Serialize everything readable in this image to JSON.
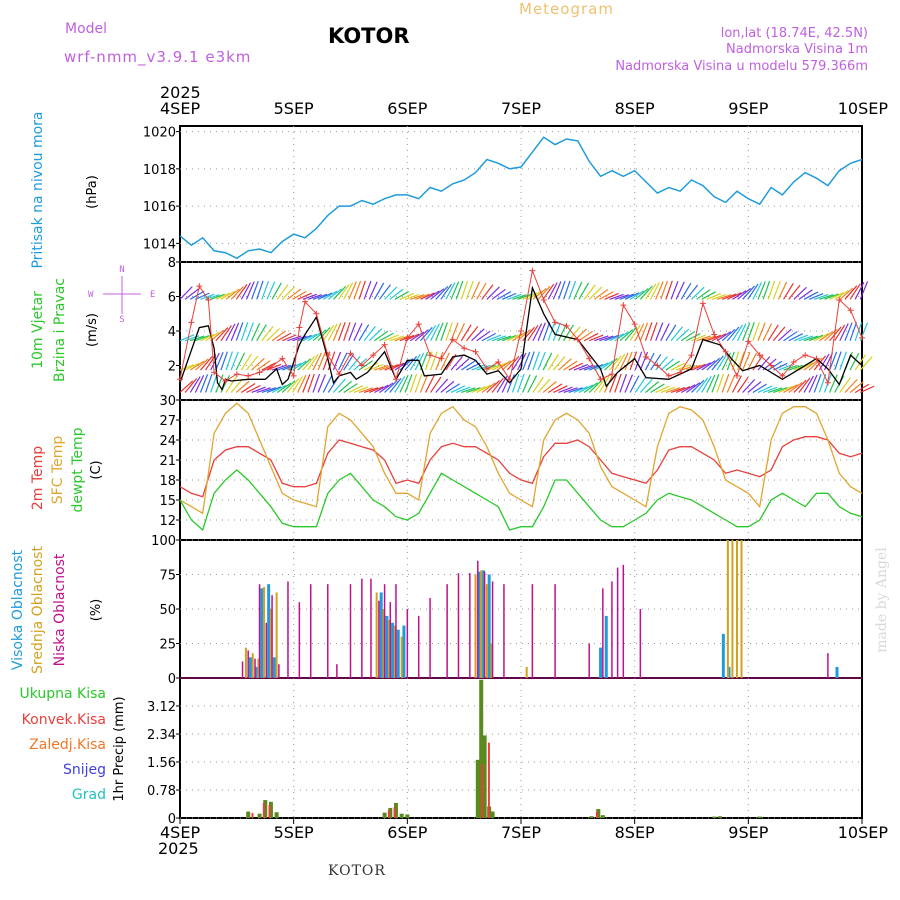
{
  "header": {
    "model_label": "Model",
    "model_name": "wrf-nmm_v3.9.1 e3km",
    "station": "KOTOR",
    "chart_kind": "Meteogram",
    "lonlat": "lon,lat (18.74E, 42.5N)",
    "elevation": "Nadmorska Visina 1m",
    "model_elevation": "Nadmorska Visina u modelu 579.366m",
    "watermark": "made by Angel",
    "footer_station": "KOTOR"
  },
  "colors": {
    "pressure": "#1e9bdc",
    "wind_speed": "#000000",
    "wind_gust": "#e8403c",
    "t2m": "#e8403c",
    "sfc": "#e0a530",
    "dewpt": "#2ac82a",
    "high_cloud": "#1e9bdc",
    "mid_cloud": "#d4a020",
    "low_cloud": "#c0108c",
    "total_precip": "#5a8a1e",
    "conv_precip": "#e8403c",
    "ls_precip": "#f07828",
    "snow": "#4040e0",
    "hail": "#20c0c0",
    "model_label": "#c060e0",
    "meteogram": "#f0c070"
  },
  "time_axis": {
    "year": "2025",
    "ticks": [
      "4SEP",
      "5SEP",
      "6SEP",
      "7SEP",
      "8SEP",
      "9SEP",
      "10SEP"
    ]
  },
  "panel_labels": {
    "pressure": {
      "name": "Pritisak na nivou mora",
      "unit": "(hPa)"
    },
    "wind": {
      "name1": "10m Vjetar",
      "name2": "Brzina i Pravac",
      "unit": "(m/s)",
      "compass_n": "N",
      "compass_w": "W",
      "compass_e": "E",
      "compass_s": "S"
    },
    "temp": {
      "name1": "2m Temp",
      "name2": "SFC Temp",
      "name3": "dewpt Temp",
      "unit": "(C)"
    },
    "cloud": {
      "name1": "Visoka Oblacnost",
      "name2": "Srednja Oblacnost",
      "name3": "Niska Oblacnost",
      "unit": "(%)"
    },
    "precip": {
      "l1": "Ukupna Kisa",
      "l2": "Konvek.Kisa",
      "l3": "Zaledj.Kisa",
      "l4": "Snijeg",
      "l5": "Grad",
      "unit": "1hr Precip (mm)"
    }
  },
  "chart_data": [
    {
      "type": "line",
      "title": "Pritisak na nivou mora",
      "ylabel": "(hPa)",
      "ylim": [
        1013,
        1020.3
      ],
      "yticks": [
        "1014",
        "1016",
        "1018",
        "1020"
      ],
      "x_days": [
        0,
        0.1,
        0.2,
        0.3,
        0.4,
        0.5,
        0.6,
        0.7,
        0.8,
        0.9,
        1.0,
        1.1,
        1.2,
        1.3,
        1.4,
        1.5,
        1.6,
        1.7,
        1.8,
        1.9,
        2.0,
        2.1,
        2.2,
        2.3,
        2.4,
        2.5,
        2.6,
        2.7,
        2.8,
        2.9,
        3.0,
        3.1,
        3.2,
        3.3,
        3.4,
        3.5,
        3.6,
        3.7,
        3.8,
        3.9,
        4.0,
        4.1,
        4.2,
        4.3,
        4.4,
        4.5,
        4.6,
        4.7,
        4.8,
        4.9,
        5.0,
        5.1,
        5.2,
        5.3,
        5.4,
        5.5,
        5.6,
        5.7,
        5.8,
        5.9,
        6.0
      ],
      "values": [
        1014.4,
        1013.9,
        1014.3,
        1013.6,
        1013.5,
        1013.2,
        1013.6,
        1013.7,
        1013.5,
        1014.1,
        1014.5,
        1014.3,
        1014.8,
        1015.5,
        1016.0,
        1016.0,
        1016.3,
        1016.1,
        1016.4,
        1016.6,
        1016.6,
        1016.4,
        1017.0,
        1016.8,
        1017.2,
        1017.4,
        1017.8,
        1018.5,
        1018.3,
        1018.0,
        1018.1,
        1018.9,
        1019.7,
        1019.3,
        1019.6,
        1019.5,
        1018.4,
        1017.6,
        1017.9,
        1017.6,
        1017.9,
        1017.3,
        1016.7,
        1017.0,
        1016.8,
        1017.4,
        1017.1,
        1016.5,
        1016.2,
        1016.8,
        1016.4,
        1016.1,
        1017.0,
        1016.6,
        1017.3,
        1017.8,
        1017.5,
        1017.1,
        1017.9,
        1018.3,
        1018.5
      ]
    },
    {
      "type": "line",
      "title": "10m Vjetar Brzina i Pravac",
      "ylabel": "(m/s)",
      "ylim": [
        0,
        8
      ],
      "yticks": [
        "2",
        "4",
        "6",
        "8"
      ],
      "series": [
        {
          "name": "wind speed",
          "x_days": [
            0,
            0.17,
            0.25,
            0.3,
            0.33,
            0.37,
            0.4,
            0.45,
            0.6,
            0.75,
            0.85,
            0.9,
            0.95,
            1.05,
            1.1,
            1.2,
            1.3,
            1.35,
            1.4,
            1.5,
            1.55,
            1.65,
            1.8,
            1.9,
            2.0,
            2.1,
            2.15,
            2.3,
            2.4,
            2.5,
            2.6,
            2.7,
            2.8,
            2.9,
            3.0,
            3.1,
            3.2,
            3.3,
            3.5,
            3.7,
            3.75,
            3.85,
            4.0,
            4.1,
            4.3,
            4.5,
            4.6,
            4.75,
            4.85,
            4.95,
            5.1,
            5.3,
            5.4,
            5.6,
            5.7,
            5.8,
            5.9,
            6.0
          ],
          "values": [
            1.0,
            4.2,
            4.3,
            3.0,
            1.0,
            0.6,
            1.2,
            1.1,
            1.2,
            1.2,
            1.8,
            0.9,
            1.2,
            3.2,
            3.8,
            4.8,
            2.4,
            1.0,
            1.4,
            1.6,
            1.2,
            1.6,
            2.8,
            1.2,
            2.3,
            2.3,
            1.4,
            1.5,
            2.5,
            2.6,
            2.3,
            1.5,
            1.7,
            1.0,
            1.8,
            6.5,
            5.0,
            3.8,
            3.5,
            1.8,
            0.8,
            1.6,
            2.4,
            1.3,
            1.2,
            1.8,
            3.5,
            3.2,
            2.4,
            1.7,
            2.0,
            1.2,
            1.6,
            2.4,
            1.8,
            0.9,
            2.6,
            2.0
          ]
        },
        {
          "name": "wind gust",
          "x_days": [
            0,
            0.1,
            0.17,
            0.25,
            0.3,
            0.4,
            0.5,
            0.6,
            0.7,
            0.8,
            0.9,
            1.0,
            1.05,
            1.1,
            1.2,
            1.3,
            1.4,
            1.5,
            1.6,
            1.7,
            1.8,
            1.9,
            2.0,
            2.1,
            2.2,
            2.3,
            2.4,
            2.5,
            2.6,
            2.7,
            2.8,
            2.9,
            3.0,
            3.1,
            3.2,
            3.3,
            3.4,
            3.5,
            3.6,
            3.7,
            3.8,
            3.9,
            4.0,
            4.1,
            4.2,
            4.3,
            4.4,
            4.5,
            4.6,
            4.7,
            4.8,
            4.9,
            5.0,
            5.1,
            5.2,
            5.3,
            5.4,
            5.5,
            5.6,
            5.7,
            5.8,
            5.9,
            6.0
          ],
          "values": [
            1.2,
            4.5,
            6.6,
            5.8,
            1.6,
            1.1,
            1.5,
            1.4,
            1.6,
            1.9,
            2.4,
            1.4,
            4.2,
            5.7,
            5.0,
            2.6,
            1.5,
            2.7,
            2.0,
            2.6,
            3.2,
            1.2,
            3.6,
            4.4,
            2.6,
            2.4,
            3.5,
            3.0,
            2.8,
            1.8,
            2.2,
            1.2,
            4.0,
            7.5,
            5.8,
            4.5,
            4.3,
            3.5,
            2.4,
            1.2,
            1.5,
            5.5,
            4.4,
            2.5,
            2.0,
            1.4,
            1.6,
            2.6,
            5.6,
            3.8,
            2.8,
            1.4,
            3.4,
            2.6,
            2.0,
            1.4,
            2.2,
            2.6,
            2.4,
            1.0,
            5.8,
            5.2,
            3.6
          ]
        }
      ]
    },
    {
      "type": "line",
      "title": "2m Temp / SFC Temp / dewpt Temp",
      "ylabel": "(C)",
      "ylim": [
        9,
        30
      ],
      "yticks": [
        "12",
        "15",
        "18",
        "21",
        "24",
        "27",
        "30"
      ],
      "x_days": [
        0,
        0.1,
        0.2,
        0.3,
        0.4,
        0.5,
        0.6,
        0.7,
        0.8,
        0.9,
        1.0,
        1.1,
        1.2,
        1.3,
        1.4,
        1.5,
        1.6,
        1.7,
        1.8,
        1.9,
        2.0,
        2.1,
        2.2,
        2.3,
        2.4,
        2.5,
        2.6,
        2.7,
        2.8,
        2.9,
        3.0,
        3.1,
        3.2,
        3.3,
        3.4,
        3.5,
        3.6,
        3.7,
        3.8,
        3.9,
        4.0,
        4.1,
        4.2,
        4.3,
        4.4,
        4.5,
        4.6,
        4.7,
        4.8,
        4.9,
        5.0,
        5.1,
        5.2,
        5.3,
        5.4,
        5.5,
        5.6,
        5.7,
        5.8,
        5.9,
        6.0
      ],
      "series": [
        {
          "name": "2m Temp",
          "values": [
            17,
            16,
            15.5,
            21,
            22.5,
            23,
            23,
            22,
            21,
            17.5,
            17,
            17,
            17.5,
            22,
            24,
            23.5,
            23,
            22.5,
            21,
            17.5,
            18,
            17.5,
            21,
            23,
            23.5,
            23,
            23,
            22,
            21,
            19,
            18,
            17.5,
            21.5,
            23.5,
            23.5,
            24,
            23,
            21,
            19,
            18.5,
            18,
            17.5,
            19.5,
            22.5,
            23,
            23,
            22,
            21,
            19,
            19.5,
            19,
            18.5,
            19.5,
            23,
            24,
            24.5,
            24.5,
            24,
            22,
            21.5,
            22
          ]
        },
        {
          "name": "SFC Temp",
          "values": [
            15,
            14,
            13,
            25,
            28,
            29.5,
            28,
            24,
            20,
            16,
            15,
            14.5,
            14,
            26,
            28,
            27,
            25,
            23,
            19,
            16,
            16,
            15,
            25,
            28,
            29,
            27,
            26,
            23,
            19,
            16,
            15,
            14,
            24,
            27,
            28,
            27,
            25,
            20,
            17,
            16,
            15,
            14,
            23,
            28,
            29,
            28.5,
            27,
            23,
            18,
            17,
            16,
            14,
            24,
            28,
            29,
            29,
            28,
            24,
            19,
            17,
            16
          ]
        },
        {
          "name": "dewpt Temp",
          "values": [
            15,
            12,
            10.5,
            16,
            18,
            19.5,
            18,
            16,
            14,
            11.5,
            11,
            11,
            11,
            16,
            18,
            19,
            17,
            15,
            14,
            12.5,
            12,
            13,
            16,
            19,
            18,
            17,
            16,
            15,
            14,
            10.5,
            11,
            11,
            14,
            18,
            18,
            16,
            14,
            12,
            11,
            11,
            12,
            13,
            15,
            16,
            15.5,
            15,
            14,
            13,
            12,
            11,
            11,
            12,
            15,
            16,
            15,
            14,
            16,
            16,
            14,
            13,
            12.5
          ]
        }
      ]
    },
    {
      "type": "bar",
      "title": "Visoka / Srednja / Niska Oblacnost",
      "ylabel": "(%)",
      "ylim": [
        0,
        100
      ],
      "yticks": [
        "0",
        "25",
        "50",
        "75",
        "100"
      ],
      "series": [
        {
          "name": "Visoka Oblacnost",
          "x_days": [
            0.62,
            0.67,
            0.72,
            0.78,
            0.83,
            1.77,
            1.82,
            1.87,
            1.92,
            1.97,
            2.63,
            2.67,
            2.72,
            3.7,
            3.75,
            4.78,
            4.83,
            5.78
          ],
          "values": [
            15,
            8,
            65,
            68,
            15,
            62,
            45,
            40,
            35,
            38,
            77,
            78,
            75,
            22,
            45,
            32,
            8,
            8
          ]
        },
        {
          "name": "Srednja Oblacnost",
          "x_days": [
            0.58,
            0.64,
            0.69,
            0.74,
            0.8,
            0.85,
            1.73,
            1.79,
            1.84,
            1.89,
            1.95,
            2.6,
            2.65,
            2.7,
            2.74,
            3.05,
            4.82,
            4.86,
            4.9,
            4.94
          ],
          "values": [
            22,
            18,
            14,
            66,
            50,
            62,
            62,
            50,
            42,
            38,
            30,
            75,
            78,
            68,
            25,
            8,
            100,
            100,
            100,
            100
          ]
        },
        {
          "name": "Niska Oblacnost",
          "x_days": [
            0.55,
            0.6,
            0.66,
            0.7,
            0.76,
            0.81,
            0.87,
            0.95,
            1.05,
            1.15,
            1.3,
            1.38,
            1.5,
            1.6,
            1.68,
            1.75,
            1.8,
            1.85,
            1.9,
            2.0,
            2.1,
            2.2,
            2.35,
            2.45,
            2.55,
            2.62,
            2.68,
            2.75,
            2.85,
            3.1,
            3.3,
            3.6,
            3.72,
            3.8,
            3.85,
            3.9,
            4.05,
            5.7
          ],
          "values": [
            12,
            20,
            14,
            68,
            40,
            60,
            10,
            70,
            55,
            68,
            68,
            10,
            68,
            72,
            72,
            56,
            68,
            55,
            68,
            50,
            45,
            58,
            68,
            76,
            76,
            85,
            77,
            70,
            68,
            68,
            68,
            25,
            65,
            70,
            80,
            82,
            50,
            18
          ]
        }
      ]
    },
    {
      "type": "bar",
      "title": "1hr Precip",
      "ylabel": "1hr Precip (mm)",
      "ylim": [
        0,
        3.9
      ],
      "yticks": [
        "0",
        "0.78",
        "1.56",
        "2.34",
        "3.12"
      ],
      "series": [
        {
          "name": "Ukupna Kisa",
          "x_days": [
            0.6,
            0.7,
            0.75,
            0.8,
            0.85,
            1.8,
            1.85,
            1.9,
            1.95,
            2.0,
            2.62,
            2.65,
            2.68,
            2.72,
            2.75,
            3.62,
            3.68,
            3.72,
            4.7,
            4.75,
            5.1
          ],
          "values": [
            0.18,
            0.12,
            0.5,
            0.45,
            0.16,
            0.15,
            0.28,
            0.42,
            0.12,
            0.1,
            1.62,
            3.85,
            2.3,
            0.32,
            0.18,
            0.05,
            0.25,
            0.08,
            0.04,
            0.05,
            0.04
          ]
        },
        {
          "name": "Konvek.Kisa",
          "x_days": [
            0.62,
            0.72,
            0.77,
            1.82,
            1.87,
            2.64,
            2.7,
            3.65
          ],
          "values": [
            0.14,
            0.42,
            0.36,
            0.22,
            0.3,
            1.5,
            2.1,
            0.18
          ]
        }
      ]
    }
  ]
}
